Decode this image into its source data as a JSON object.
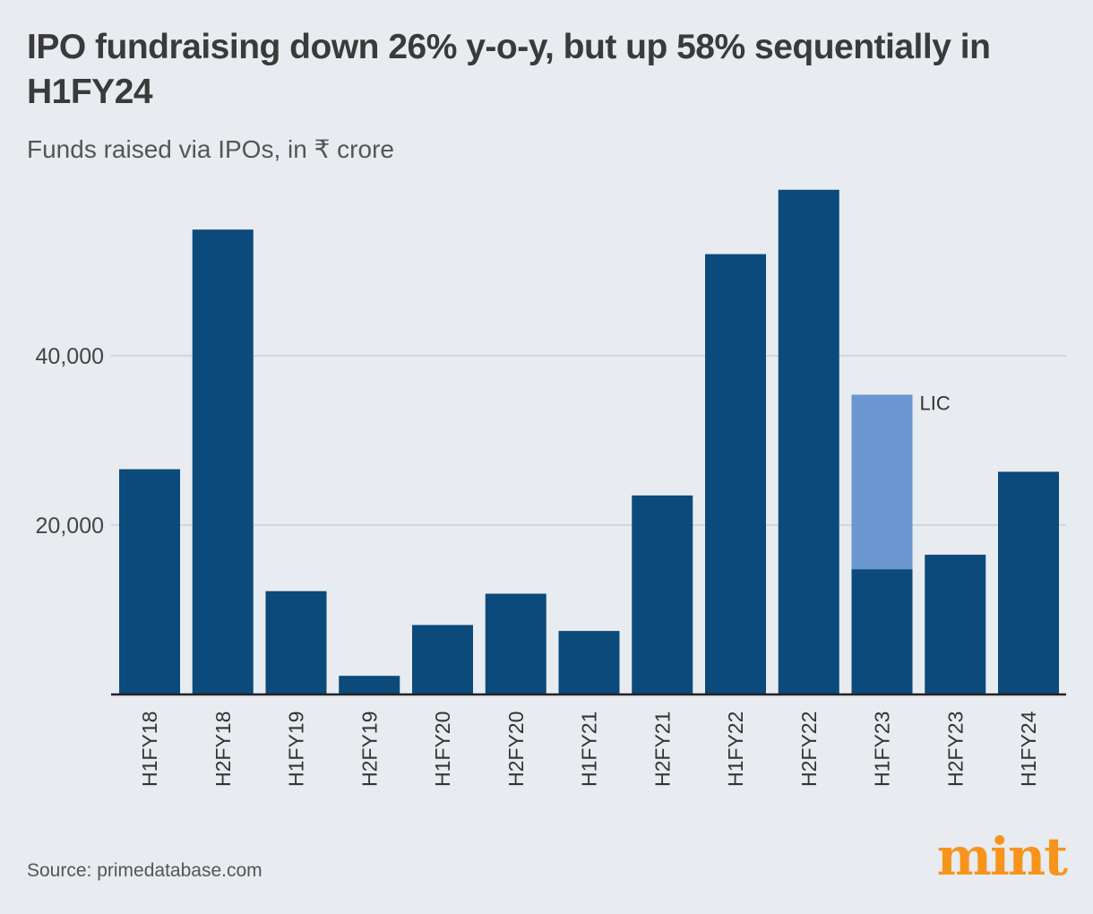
{
  "title": "IPO fundraising down 26% y-o-y, but up 58% sequentially in H1FY24",
  "subtitle": "Funds raised via IPOs, in ₹ crore",
  "source": "Source: primedatabase.com",
  "logo": "mint",
  "chart_data": {
    "type": "bar",
    "stacked": true,
    "categories": [
      "H1FY18",
      "H2FY18",
      "H1FY19",
      "H2FY19",
      "H1FY20",
      "H2FY20",
      "H1FY21",
      "H2FY21",
      "H1FY22",
      "H2FY22",
      "H1FY23",
      "H2FY23",
      "H1FY24"
    ],
    "series": [
      {
        "values": [
          26600,
          54900,
          12200,
          2200,
          8200,
          11900,
          7500,
          23500,
          52000,
          59600,
          14800,
          16500,
          26300
        ],
        "color": "#0b4a7a"
      },
      {
        "name": "LIC",
        "values": [
          0,
          0,
          0,
          0,
          0,
          0,
          0,
          0,
          0,
          0,
          20600,
          0,
          0
        ],
        "color": "#6a97cf"
      }
    ],
    "ylim": [
      0,
      60000
    ],
    "yticks": [
      20000,
      40000
    ],
    "ytick_labels": [
      "20,000",
      "40,000"
    ],
    "grid": true,
    "annotation": "LIC"
  }
}
